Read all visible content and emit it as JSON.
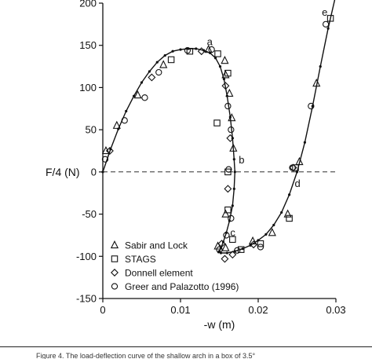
{
  "caption": "Figure 4. The load-deflection curve of the shallow arch in a box of 3.5°",
  "chart_data": {
    "type": "scatter",
    "xlabel": "-w (m)",
    "ylabel": "F/4 (N)",
    "xlim": [
      0,
      0.03
    ],
    "ylim": [
      -150,
      200
    ],
    "xticks": [
      0,
      0.01,
      0.02,
      0.03
    ],
    "yticks": [
      -150,
      -100,
      -50,
      0,
      50,
      100,
      150,
      200
    ],
    "grid": false,
    "legend_position": "bottom-right",
    "reference_line": {
      "y": 0,
      "style": "dashed"
    },
    "annotations": [
      {
        "text": "a",
        "x": 0.0134,
        "y": 150
      },
      {
        "text": "b",
        "x": 0.0175,
        "y": 10
      },
      {
        "text": "c",
        "x": 0.0164,
        "y": -76
      },
      {
        "text": "d",
        "x": 0.0247,
        "y": -18
      },
      {
        "text": "e",
        "x": 0.0282,
        "y": 185
      }
    ],
    "series": [
      {
        "name": "",
        "marker": "line",
        "x": [
          0,
          0.001,
          0.002,
          0.003,
          0.004,
          0.005,
          0.006,
          0.007,
          0.008,
          0.009,
          0.01,
          0.011,
          0.012,
          0.013,
          0.0138,
          0.0145,
          0.0151,
          0.0156,
          0.016,
          0.0164,
          0.0167,
          0.0169,
          0.017,
          0.0169,
          0.0167,
          0.0163,
          0.0159,
          0.0155,
          0.0152,
          0.015,
          0.0149,
          0.0152,
          0.016,
          0.017,
          0.018,
          0.019,
          0.02,
          0.021,
          0.022,
          0.023,
          0.024,
          0.025,
          0.026,
          0.027,
          0.028,
          0.029,
          0.03
        ],
        "y": [
          0,
          27,
          51,
          72,
          90,
          106,
          119,
          130,
          138,
          143,
          145,
          146,
          146,
          144,
          141,
          135,
          125,
          110,
          90,
          65,
          40,
          15,
          0,
          -20,
          -40,
          -58,
          -72,
          -83,
          -90,
          -94,
          -95,
          -96,
          -96,
          -94,
          -91,
          -87,
          -81,
          -74,
          -63,
          -48,
          -27,
          0,
          35,
          78,
          125,
          170,
          210
        ]
      },
      {
        "name": "Sabir and Lock",
        "marker": "triangle",
        "x": [
          0.0004,
          0.0018,
          0.0045,
          0.0078,
          0.0136,
          0.0157,
          0.0158,
          0.0163,
          0.0166,
          0.0168,
          0.0158,
          0.0148,
          0.0158,
          0.0193,
          0.0218,
          0.0238,
          0.0253,
          0.0275
        ],
        "y": [
          25,
          55,
          91,
          127,
          145,
          132,
          115,
          93,
          64,
          28,
          -50,
          -88,
          -90,
          -82,
          -72,
          -50,
          12,
          105
        ]
      },
      {
        "name": "STAGS",
        "marker": "square",
        "x": [
          0.0088,
          0.0112,
          0.0148,
          0.0161,
          0.0147,
          0.0161,
          0.0161,
          0.0167,
          0.0178,
          0.0203,
          0.024,
          0.0248,
          0.0293
        ],
        "y": [
          133,
          143,
          140,
          117,
          58,
          0,
          -45,
          -80,
          -92,
          -85,
          -55,
          5,
          182
        ]
      },
      {
        "name": "Donnell element",
        "marker": "diamond",
        "x": [
          0.0009,
          0.0063,
          0.0127,
          0.0158,
          0.0164,
          0.0161,
          0.0153,
          0.0157,
          0.0167,
          0.0194,
          0.0245
        ],
        "y": [
          25,
          112,
          143,
          102,
          40,
          -20,
          -85,
          -103,
          -98,
          -86,
          5
        ]
      },
      {
        "name": "Greer and Palazotto (1996)",
        "marker": "circle",
        "x": [
          0.0003,
          0.0028,
          0.0054,
          0.0072,
          0.0109,
          0.014,
          0.0161,
          0.0165,
          0.0162,
          0.0165,
          0.0159,
          0.015,
          0.0173,
          0.0203,
          0.0244,
          0.0268,
          0.0287
        ],
        "y": [
          15,
          61,
          88,
          118,
          144,
          145,
          78,
          50,
          3,
          -55,
          -75,
          -92,
          -93,
          -89,
          5,
          78,
          175
        ]
      }
    ]
  }
}
